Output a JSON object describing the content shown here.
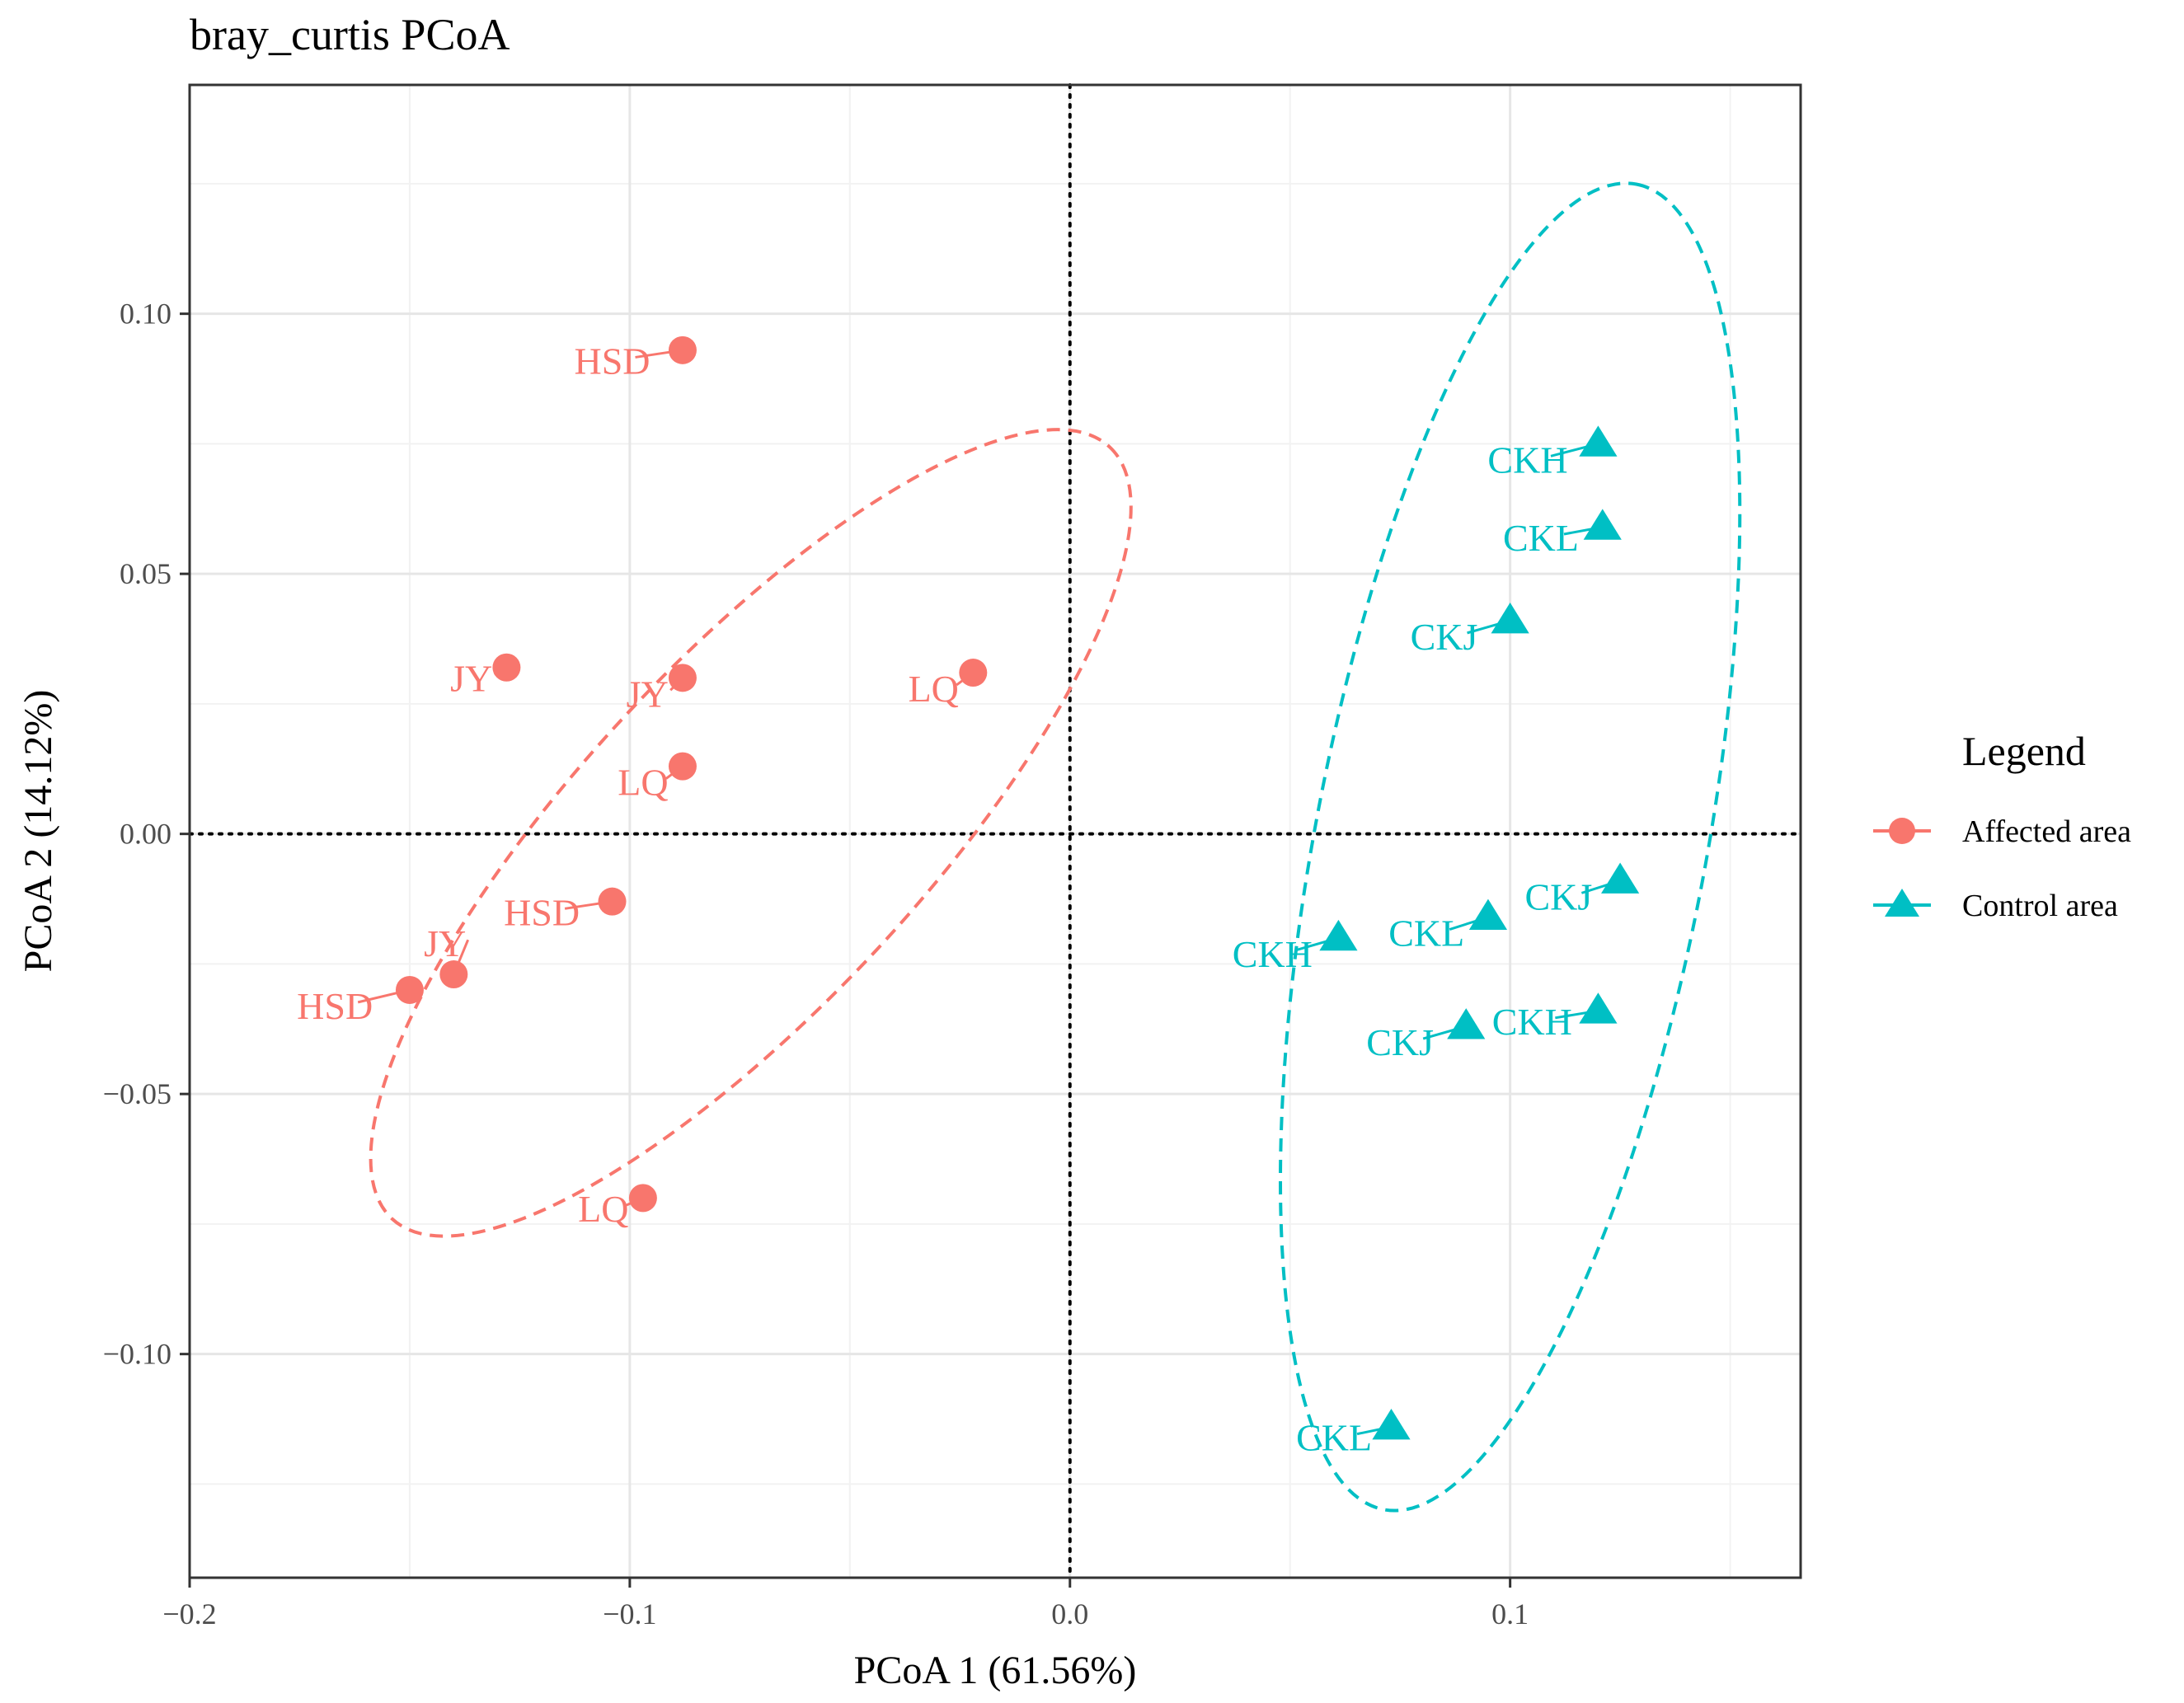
{
  "chart_data": {
    "type": "scatter",
    "title": "bray_curtis PCoA",
    "xlabel": "PCoA 1 (61.56%)",
    "ylabel": "PCoA 2 (14.12%)",
    "xlim": [
      -0.2,
      0.166
    ],
    "ylim": [
      -0.143,
      0.144
    ],
    "x_ticks": [
      -0.2,
      -0.1,
      0.0,
      0.1
    ],
    "x_tick_labels": [
      "−0.2",
      "−0.1",
      "0.0",
      "0.1"
    ],
    "y_ticks": [
      0.1,
      0.05,
      0.0,
      -0.05,
      -0.1
    ],
    "y_tick_labels": [
      "0.10",
      "0.05",
      "0.00",
      "−0.05",
      "−0.10"
    ],
    "grid": true,
    "reference_lines": {
      "x": 0,
      "y": 0,
      "style": "dotted"
    },
    "legend": {
      "title": "Legend",
      "position": "right",
      "entries": [
        {
          "name": "Affected area",
          "color": "#F8766D",
          "shape": "circle"
        },
        {
          "name": "Control area",
          "color": "#00BFC4",
          "shape": "triangle"
        }
      ]
    },
    "series": [
      {
        "name": "Affected area",
        "color": "#F8766D",
        "shape": "circle",
        "points": [
          {
            "label": "HSD",
            "x": -0.088,
            "y": 0.093,
            "label_x": -0.104,
            "label_y": 0.091
          },
          {
            "label": "JY",
            "x": -0.128,
            "y": 0.032,
            "label_x": -0.136,
            "label_y": 0.03
          },
          {
            "label": "JY",
            "x": -0.088,
            "y": 0.03,
            "label_x": -0.096,
            "label_y": 0.027
          },
          {
            "label": "LQ",
            "x": -0.022,
            "y": 0.031,
            "label_x": -0.031,
            "label_y": 0.028
          },
          {
            "label": "LQ",
            "x": -0.088,
            "y": 0.013,
            "label_x": -0.097,
            "label_y": 0.01
          },
          {
            "label": "HSD",
            "x": -0.104,
            "y": -0.013,
            "label_x": -0.12,
            "label_y": -0.015
          },
          {
            "label": "JY",
            "x": -0.14,
            "y": -0.027,
            "label_x": -0.142,
            "label_y": -0.021
          },
          {
            "label": "HSD",
            "x": -0.15,
            "y": -0.03,
            "label_x": -0.167,
            "label_y": -0.033
          },
          {
            "label": "LQ",
            "x": -0.097,
            "y": -0.07,
            "label_x": -0.106,
            "label_y": -0.072
          }
        ],
        "ellipse": {
          "center": [
            -0.0725,
            0.0002
          ],
          "axis_points": [
            [
              -0.154,
              -0.074
            ],
            [
              0.009,
              0.0744
            ]
          ],
          "second_axis_point": [
            -0.0486,
            -0.0259
          ]
        }
      },
      {
        "name": "Control area",
        "color": "#00BFC4",
        "shape": "triangle",
        "points": [
          {
            "label": "CKH",
            "x": 0.12,
            "y": 0.075,
            "label_x": 0.104,
            "label_y": 0.072
          },
          {
            "label": "CKL",
            "x": 0.121,
            "y": 0.059,
            "label_x": 0.107,
            "label_y": 0.057
          },
          {
            "label": "CKJ",
            "x": 0.1,
            "y": 0.041,
            "label_x": 0.085,
            "label_y": 0.038
          },
          {
            "label": "CKJ",
            "x": 0.125,
            "y": -0.009,
            "label_x": 0.111,
            "label_y": -0.012
          },
          {
            "label": "CKL",
            "x": 0.095,
            "y": -0.016,
            "label_x": 0.081,
            "label_y": -0.019
          },
          {
            "label": "CKH",
            "x": 0.061,
            "y": -0.02,
            "label_x": 0.046,
            "label_y": -0.023
          },
          {
            "label": "CKH",
            "x": 0.12,
            "y": -0.034,
            "label_x": 0.105,
            "label_y": -0.036
          },
          {
            "label": "CKJ",
            "x": 0.09,
            "y": -0.037,
            "label_x": 0.075,
            "label_y": -0.04
          },
          {
            "label": "CKL",
            "x": 0.073,
            "y": -0.114,
            "label_x": 0.06,
            "label_y": -0.116
          }
        ],
        "ellipse": {
          "center": [
            0.1,
            -0.0025
          ],
          "axis_points": [
            [
              0.0714,
              -0.1299
            ],
            [
              0.1288,
              0.1249
            ]
          ],
          "second_axis_point": [
            0.1428,
            -0.0124
          ]
        }
      }
    ]
  }
}
